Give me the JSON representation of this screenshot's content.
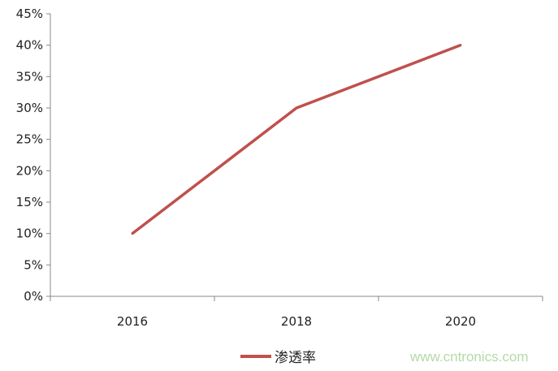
{
  "chart_data": {
    "type": "line",
    "categories": [
      "2016",
      "2018",
      "2020"
    ],
    "series": [
      {
        "name": "渗透率",
        "values": [
          10,
          30,
          40
        ],
        "color": "#c0504d"
      }
    ],
    "ylim": [
      0,
      45
    ],
    "yticks": [
      0,
      5,
      10,
      15,
      20,
      25,
      30,
      35,
      40,
      45
    ],
    "ytick_format": "%",
    "grid": false,
    "legend": "bottom",
    "title": "",
    "xlabel": "",
    "ylabel": ""
  },
  "legend": {
    "label": "渗透率"
  },
  "watermark": "www.cntronics.com"
}
